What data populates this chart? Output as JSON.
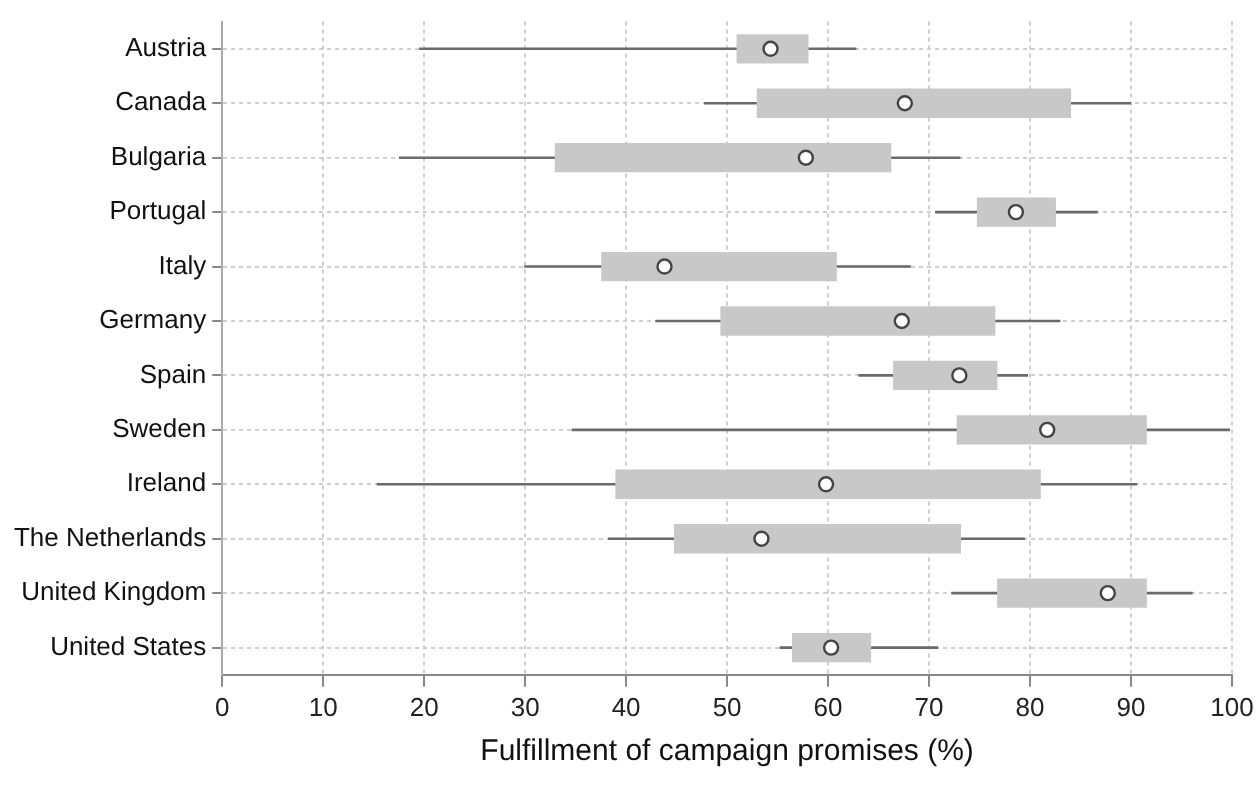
{
  "chart_data": {
    "type": "box",
    "orientation": "horizontal",
    "xlabel": "Fulfillment of campaign promises (%)",
    "categories": [
      "Austria",
      "Canada",
      "Bulgaria",
      "Portugal",
      "Italy",
      "Germany",
      "Spain",
      "Sweden",
      "Ireland",
      "The Netherlands",
      "United Kingdom",
      "United States"
    ],
    "color": "#c8c8c8",
    "boxes": [
      {
        "low": 19.5,
        "q1": 51,
        "median": 54.3,
        "q3": 58,
        "high": 62.8
      },
      {
        "low": 47.7,
        "q1": 53,
        "median": 67.6,
        "q3": 84,
        "high": 90
      },
      {
        "low": 17.5,
        "q1": 33,
        "median": 57.8,
        "q3": 66.2,
        "high": 73.1
      },
      {
        "low": 70.6,
        "q1": 74.8,
        "median": 78.6,
        "q3": 82.5,
        "high": 86.7
      },
      {
        "low": 29.9,
        "q1": 37.6,
        "median": 43.8,
        "q3": 60.8,
        "high": 68.2
      },
      {
        "low": 42.9,
        "q1": 49.4,
        "median": 67.3,
        "q3": 76.5,
        "high": 83
      },
      {
        "low": 63,
        "q1": 66.5,
        "median": 73,
        "q3": 76.7,
        "high": 79.8
      },
      {
        "low": 34.6,
        "q1": 72.8,
        "median": 81.7,
        "q3": 91.5,
        "high": 99.8
      },
      {
        "low": 15.3,
        "q1": 39,
        "median": 59.8,
        "q3": 81,
        "high": 90.6
      },
      {
        "low": 38.2,
        "q1": 44.8,
        "median": 53.4,
        "q3": 73.1,
        "high": 79.5
      },
      {
        "low": 72.2,
        "q1": 76.8,
        "median": 87.7,
        "q3": 91.5,
        "high": 96.1
      },
      {
        "low": 55.2,
        "q1": 56.5,
        "median": 60.3,
        "q3": 64.2,
        "high": 70.9
      }
    ],
    "xlim": [
      0,
      100
    ],
    "xticks": [
      0,
      10,
      20,
      30,
      40,
      50,
      60,
      70,
      80,
      90,
      100
    ],
    "grid": true,
    "legend": false
  }
}
